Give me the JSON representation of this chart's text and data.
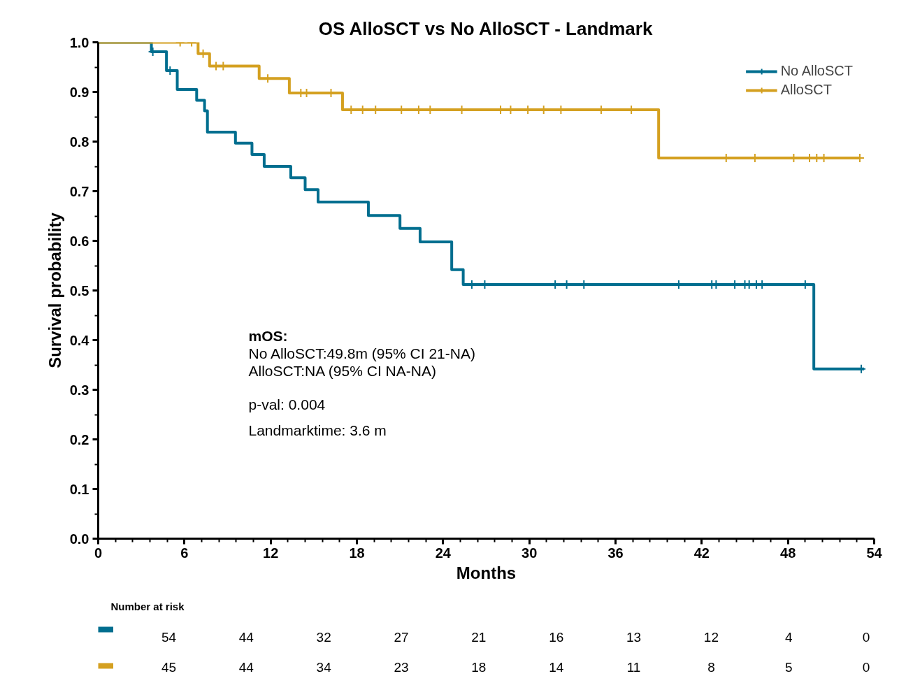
{
  "chart_data": {
    "type": "step",
    "title": "OS AlloSCT vs No AlloSCT - Landmark",
    "xlabel": "Months",
    "ylabel": "Survival probability",
    "xlim": [
      0,
      54
    ],
    "xticks": [
      0,
      6,
      12,
      18,
      24,
      30,
      36,
      42,
      48,
      54
    ],
    "ylim": [
      0,
      1
    ],
    "yticks": [
      {
        "value": 0,
        "label": "0.0"
      },
      {
        "value": 0.1,
        "label": "0.1"
      },
      {
        "value": 0.2,
        "label": "0.2"
      },
      {
        "value": 0.3,
        "label": "0.3"
      },
      {
        "value": 0.4,
        "label": "0.4"
      },
      {
        "value": 0.5,
        "label": "0.5"
      },
      {
        "value": 0.6,
        "label": "0.6"
      },
      {
        "value": 0.7,
        "label": "0.7"
      },
      {
        "value": 0.8,
        "label": "0.8"
      },
      {
        "value": 0.9,
        "label": "0.9"
      },
      {
        "value": 1,
        "label": "1.0"
      }
    ],
    "grid": false,
    "legend": "top right",
    "line_style": "solid",
    "marker": "none",
    "series": [
      {
        "name": "No AlloSCT",
        "color": "#006e8f",
        "x": [
          0,
          3.7,
          4.75,
          5.5,
          6.85,
          7.4,
          7.6,
          9.55,
          10.7,
          11.55,
          13.4,
          14.4,
          15.3,
          18.8,
          21.0,
          22.4,
          24.6,
          25.4,
          49.8,
          53.3
        ],
        "values": [
          1,
          0.981,
          0.943,
          0.905,
          0.883,
          0.862,
          0.819,
          0.797,
          0.774,
          0.75,
          0.727,
          0.703,
          0.678,
          0.651,
          0.625,
          0.598,
          0.542,
          0.512,
          0.342,
          0.342
        ]
      },
      {
        "name": "AlloSCT",
        "color": "#d4a020",
        "x": [
          0,
          6.95,
          7.75,
          11.2,
          13.3,
          17.0,
          39.0,
          53.0
        ],
        "values": [
          1,
          0.977,
          0.952,
          0.927,
          0.898,
          0.864,
          0.767,
          0.767
        ]
      },
      {
        "type": "scatter",
        "marker": "cross",
        "color": "#006e8f",
        "x": [
          3.8,
          5.0,
          26.0,
          26.9,
          31.8,
          32.6,
          33.8,
          40.4,
          42.7,
          43.0,
          44.3,
          45.0,
          45.3,
          45.8,
          46.2,
          49.2,
          53.1
        ],
        "values": [
          0.981,
          0.943,
          0.512,
          0.512,
          0.512,
          0.512,
          0.512,
          0.512,
          0.512,
          0.512,
          0.512,
          0.512,
          0.512,
          0.512,
          0.512,
          0.512,
          0.342
        ]
      },
      {
        "type": "scatter",
        "marker": "cross",
        "color": "#d4a020",
        "x": [
          5.7,
          6.5,
          7.3,
          8.2,
          8.7,
          11.8,
          14.1,
          14.5,
          16.2,
          17.6,
          18.4,
          19.3,
          21.1,
          22.3,
          23.1,
          25.3,
          28.0,
          28.7,
          29.9,
          31.0,
          32.2,
          35.0,
          37.1,
          43.7,
          45.7,
          48.4,
          49.5,
          50.0,
          50.5,
          53.0
        ],
        "values": [
          1,
          1,
          0.977,
          0.952,
          0.952,
          0.927,
          0.898,
          0.898,
          0.898,
          0.864,
          0.864,
          0.864,
          0.864,
          0.864,
          0.864,
          0.864,
          0.864,
          0.864,
          0.864,
          0.864,
          0.864,
          0.864,
          0.864,
          0.767,
          0.767,
          0.767,
          0.767,
          0.767,
          0.767,
          0.767
        ]
      }
    ],
    "annotations": [
      "mOS:",
      "No AlloSCT:49.8m (95% CI 21-NA)",
      "AlloSCT:NA (95% CI NA-NA)",
      "p-val: 0.004",
      "Landmarktime: 3.6 m",
      "Number at risk",
      "54 44 32 27 21 16 13 12 4 0",
      "45 44 34 23 18 14 11 8 5 0"
    ]
  }
}
